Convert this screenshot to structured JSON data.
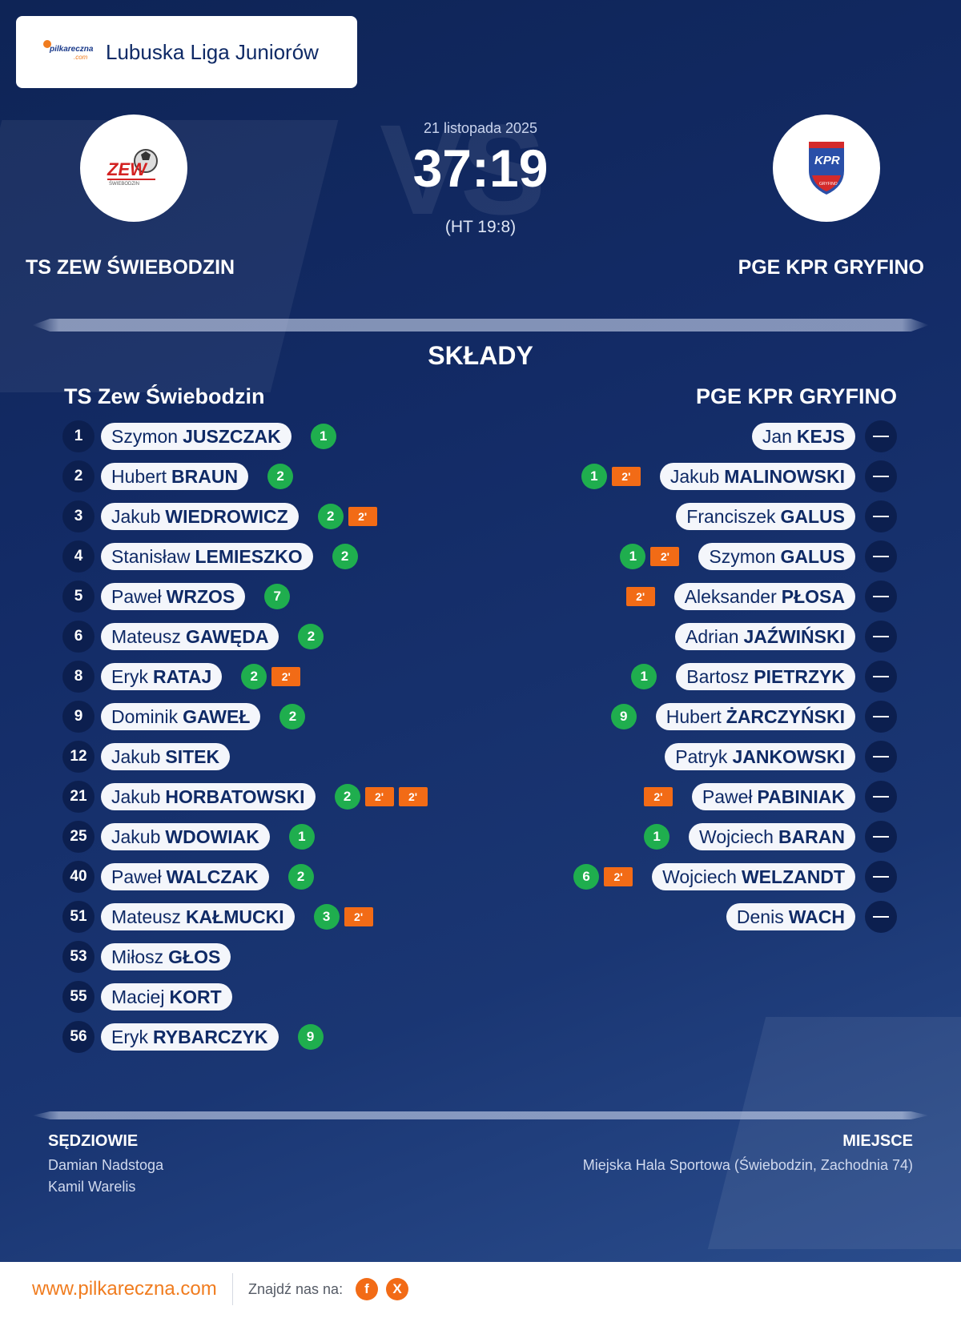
{
  "brand": {
    "logo_text": "pilkareczna",
    "logo_sub": ".com",
    "league": "Lubuska Liga Juniorów"
  },
  "match": {
    "date": "21 listopada 2025",
    "score": "37:19",
    "half_time": "(HT 19:8)",
    "vs_watermark": "VS",
    "home": "TS ZEW ŚWIEBODZIN",
    "away": "PGE KPR GRYFINO"
  },
  "section_title": "SKŁADY",
  "home_squad": {
    "title": "TS Zew Świebodzin",
    "players": [
      {
        "num": "1",
        "first": "Szymon",
        "last": "JUSZCZAK",
        "goals": "1",
        "pens": []
      },
      {
        "num": "2",
        "first": "Hubert",
        "last": "BRAUN",
        "goals": "2",
        "pens": []
      },
      {
        "num": "3",
        "first": "Jakub",
        "last": "WIEDROWICZ",
        "goals": "2",
        "pens": [
          "2'"
        ]
      },
      {
        "num": "4",
        "first": "Stanisław",
        "last": "LEMIESZKO",
        "goals": "2",
        "pens": []
      },
      {
        "num": "5",
        "first": "Paweł",
        "last": "WRZOS",
        "goals": "7",
        "pens": []
      },
      {
        "num": "6",
        "first": "Mateusz",
        "last": "GAWĘDA",
        "goals": "2",
        "pens": []
      },
      {
        "num": "8",
        "first": "Eryk",
        "last": "RATAJ",
        "goals": "2",
        "pens": [
          "2'"
        ]
      },
      {
        "num": "9",
        "first": "Dominik",
        "last": "GAWEŁ",
        "goals": "2",
        "pens": []
      },
      {
        "num": "12",
        "first": "Jakub",
        "last": "SITEK",
        "goals": "",
        "pens": []
      },
      {
        "num": "21",
        "first": "Jakub",
        "last": "HORBATOWSKI",
        "goals": "2",
        "pens": [
          "2'",
          "2'"
        ]
      },
      {
        "num": "25",
        "first": "Jakub",
        "last": "WDOWIAK",
        "goals": "1",
        "pens": []
      },
      {
        "num": "40",
        "first": "Paweł",
        "last": "WALCZAK",
        "goals": "2",
        "pens": []
      },
      {
        "num": "51",
        "first": "Mateusz",
        "last": "KAŁMUCKI",
        "goals": "3",
        "pens": [
          "2'"
        ]
      },
      {
        "num": "53",
        "first": "Miłosz",
        "last": "GŁOS",
        "goals": "",
        "pens": []
      },
      {
        "num": "55",
        "first": "Maciej",
        "last": "KORT",
        "goals": "",
        "pens": []
      },
      {
        "num": "56",
        "first": "Eryk",
        "last": "RYBARCZYK",
        "goals": "9",
        "pens": []
      }
    ]
  },
  "away_squad": {
    "title": "PGE KPR GRYFINO",
    "players": [
      {
        "first": "Jan",
        "last": "KEJS",
        "goals": "",
        "pens": []
      },
      {
        "first": "Jakub",
        "last": "MALINOWSKI",
        "goals": "1",
        "pens": [
          "2'"
        ]
      },
      {
        "first": "Franciszek",
        "last": "GALUS",
        "goals": "",
        "pens": []
      },
      {
        "first": "Szymon",
        "last": "GALUS",
        "goals": "1",
        "pens": [
          "2'"
        ]
      },
      {
        "first": "Aleksander",
        "last": "PŁOSA",
        "goals": "",
        "pens": [
          "2'"
        ]
      },
      {
        "first": "Adrian",
        "last": "JAŹWIŃSKI",
        "goals": "",
        "pens": []
      },
      {
        "first": "Bartosz",
        "last": "PIETRZYK",
        "goals": "1",
        "pens": []
      },
      {
        "first": "Hubert",
        "last": "ŻARCZYŃSKI",
        "goals": "9",
        "pens": []
      },
      {
        "first": "Patryk",
        "last": "JANKOWSKI",
        "goals": "",
        "pens": []
      },
      {
        "first": "Paweł",
        "last": "PABINIAK",
        "goals": "",
        "pens": [
          "2'"
        ]
      },
      {
        "first": "Wojciech",
        "last": "BARAN",
        "goals": "1",
        "pens": []
      },
      {
        "first": "Wojciech",
        "last": "WELZANDT",
        "goals": "6",
        "pens": [
          "2'"
        ]
      },
      {
        "first": "Denis",
        "last": "WACH",
        "goals": "",
        "pens": []
      }
    ]
  },
  "referees": {
    "label": "SĘDZIOWIE",
    "names": [
      "Damian Nadstoga",
      "Kamil Warelis"
    ]
  },
  "venue": {
    "label": "MIEJSCE",
    "text": "Miejska Hala Sportowa (Świebodzin, Zachodnia 74)"
  },
  "footer": {
    "site": "www.pilkareczna.com",
    "find_us": "Znajdź nas na:",
    "facebook": "f",
    "x": "X"
  },
  "colors": {
    "bg": "#132b66",
    "accent": "#f26b16",
    "goal": "#1fae4e"
  }
}
